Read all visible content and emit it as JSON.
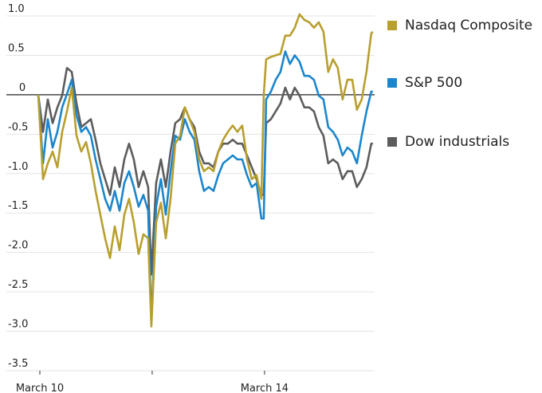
{
  "chart_data": {
    "type": "line",
    "title": "",
    "xlabel": "",
    "ylabel": "",
    "ylim": [
      -3.5,
      1.0
    ],
    "yticks": [
      1.0,
      0.5,
      0,
      -0.5,
      -1.0,
      -1.5,
      -2.0,
      -2.5,
      -3.0,
      -3.5
    ],
    "ytick_labels": [
      "1.0",
      "0.5",
      "0",
      "-0.5",
      "-1.0",
      "-1.5",
      "-2.0",
      "-2.5",
      "-3.0",
      "-3.5"
    ],
    "xlim": [
      0,
      5.96
    ],
    "xticks": [
      0,
      2,
      4
    ],
    "xtick_labels": [
      "March 10",
      "",
      "March 14"
    ],
    "grid": true,
    "zero_line": true,
    "legend_position": "right",
    "x": [
      0,
      0.085,
      0.17,
      0.255,
      0.34,
      0.426,
      0.511,
      0.596,
      0.681,
      0.766,
      0.851,
      0.936,
      1.021,
      1.106,
      1.191,
      1.277,
      1.362,
      1.447,
      1.532,
      1.617,
      1.702,
      1.787,
      1.872,
      1.957,
      2.014,
      2.099,
      2.184,
      2.27,
      2.355,
      2.44,
      2.525,
      2.61,
      2.695,
      2.78,
      2.865,
      2.95,
      3.035,
      3.121,
      3.206,
      3.291,
      3.376,
      3.461,
      3.546,
      3.631,
      3.716,
      3.801,
      3.887,
      3.972,
      4.014,
      4.057,
      4.142,
      4.227,
      4.312,
      4.397,
      4.482,
      4.567,
      4.652,
      4.738,
      4.823,
      4.908,
      4.993,
      5.078,
      5.163,
      5.248,
      5.333,
      5.418,
      5.504,
      5.589,
      5.674,
      5.759,
      5.844,
      5.929,
      5.957
    ],
    "series": [
      {
        "name": "Nasdaq Composite",
        "color": "#b89f2e",
        "values": [
          0,
          -1.07,
          -0.87,
          -0.72,
          -0.92,
          -0.47,
          -0.21,
          0.09,
          -0.52,
          -0.72,
          -0.6,
          -0.87,
          -1.22,
          -1.52,
          -1.82,
          -2.07,
          -1.67,
          -1.97,
          -1.52,
          -1.32,
          -1.62,
          -2.02,
          -1.77,
          -1.82,
          -2.94,
          -1.62,
          -1.37,
          -1.82,
          -1.32,
          -0.62,
          -0.52,
          -0.16,
          -0.31,
          -0.47,
          -0.82,
          -0.97,
          -0.92,
          -0.97,
          -0.72,
          -0.57,
          -0.47,
          -0.39,
          -0.47,
          -0.39,
          -0.82,
          -1.07,
          -1.02,
          -1.32,
          0,
          0.45,
          0.48,
          0.5,
          0.52,
          0.75,
          0.75,
          0.85,
          1.02,
          0.95,
          0.92,
          0.85,
          0.92,
          0.8,
          0.29,
          0.45,
          0.34,
          -0.06,
          0.19,
          0.19,
          -0.19,
          -0.06,
          0.29,
          0.78,
          0.8
        ]
      },
      {
        "name": "S&P 500",
        "color": "#1c86cc",
        "values": [
          0,
          -0.87,
          -0.31,
          -0.67,
          -0.47,
          -0.16,
          0.01,
          0.19,
          -0.26,
          -0.47,
          -0.41,
          -0.52,
          -0.82,
          -1.07,
          -1.32,
          -1.47,
          -1.22,
          -1.47,
          -1.12,
          -0.97,
          -1.17,
          -1.42,
          -1.27,
          -1.47,
          -2.88,
          -1.42,
          -1.07,
          -1.52,
          -0.97,
          -0.52,
          -0.57,
          -0.31,
          -0.47,
          -0.57,
          -0.97,
          -1.22,
          -1.17,
          -1.22,
          -1.02,
          -0.87,
          -0.82,
          -0.77,
          -0.82,
          -0.82,
          -1.02,
          -1.17,
          -1.12,
          -1.57,
          -1.57,
          -0.06,
          0.04,
          0.19,
          0.29,
          0.55,
          0.39,
          0.5,
          0.42,
          0.24,
          0.24,
          0.19,
          -0.01,
          -0.06,
          -0.41,
          -0.47,
          -0.57,
          -0.77,
          -0.67,
          -0.72,
          -0.87,
          -0.52,
          -0.21,
          0.04,
          0.04
        ]
      },
      {
        "name": "Dow industrials",
        "color": "#5c5c5c",
        "values": [
          0,
          -0.47,
          -0.06,
          -0.36,
          -0.16,
          -0.01,
          0.34,
          0.29,
          -0.11,
          -0.41,
          -0.36,
          -0.31,
          -0.57,
          -0.87,
          -1.07,
          -1.27,
          -0.92,
          -1.17,
          -0.82,
          -0.62,
          -0.82,
          -1.17,
          -0.97,
          -1.17,
          -2.28,
          -1.12,
          -0.82,
          -1.17,
          -0.72,
          -0.36,
          -0.31,
          -0.16,
          -0.31,
          -0.41,
          -0.72,
          -0.87,
          -0.87,
          -0.92,
          -0.72,
          -0.62,
          -0.62,
          -0.57,
          -0.62,
          -0.62,
          -0.77,
          -0.92,
          -1.07,
          -1.27,
          -1.27,
          -0.36,
          -0.31,
          -0.21,
          -0.11,
          0.09,
          -0.06,
          0.09,
          -0.01,
          -0.16,
          -0.16,
          -0.21,
          -0.41,
          -0.52,
          -0.87,
          -0.82,
          -0.87,
          -1.07,
          -0.97,
          -0.97,
          -1.17,
          -1.07,
          -0.92,
          -0.62,
          -0.62
        ]
      }
    ]
  }
}
